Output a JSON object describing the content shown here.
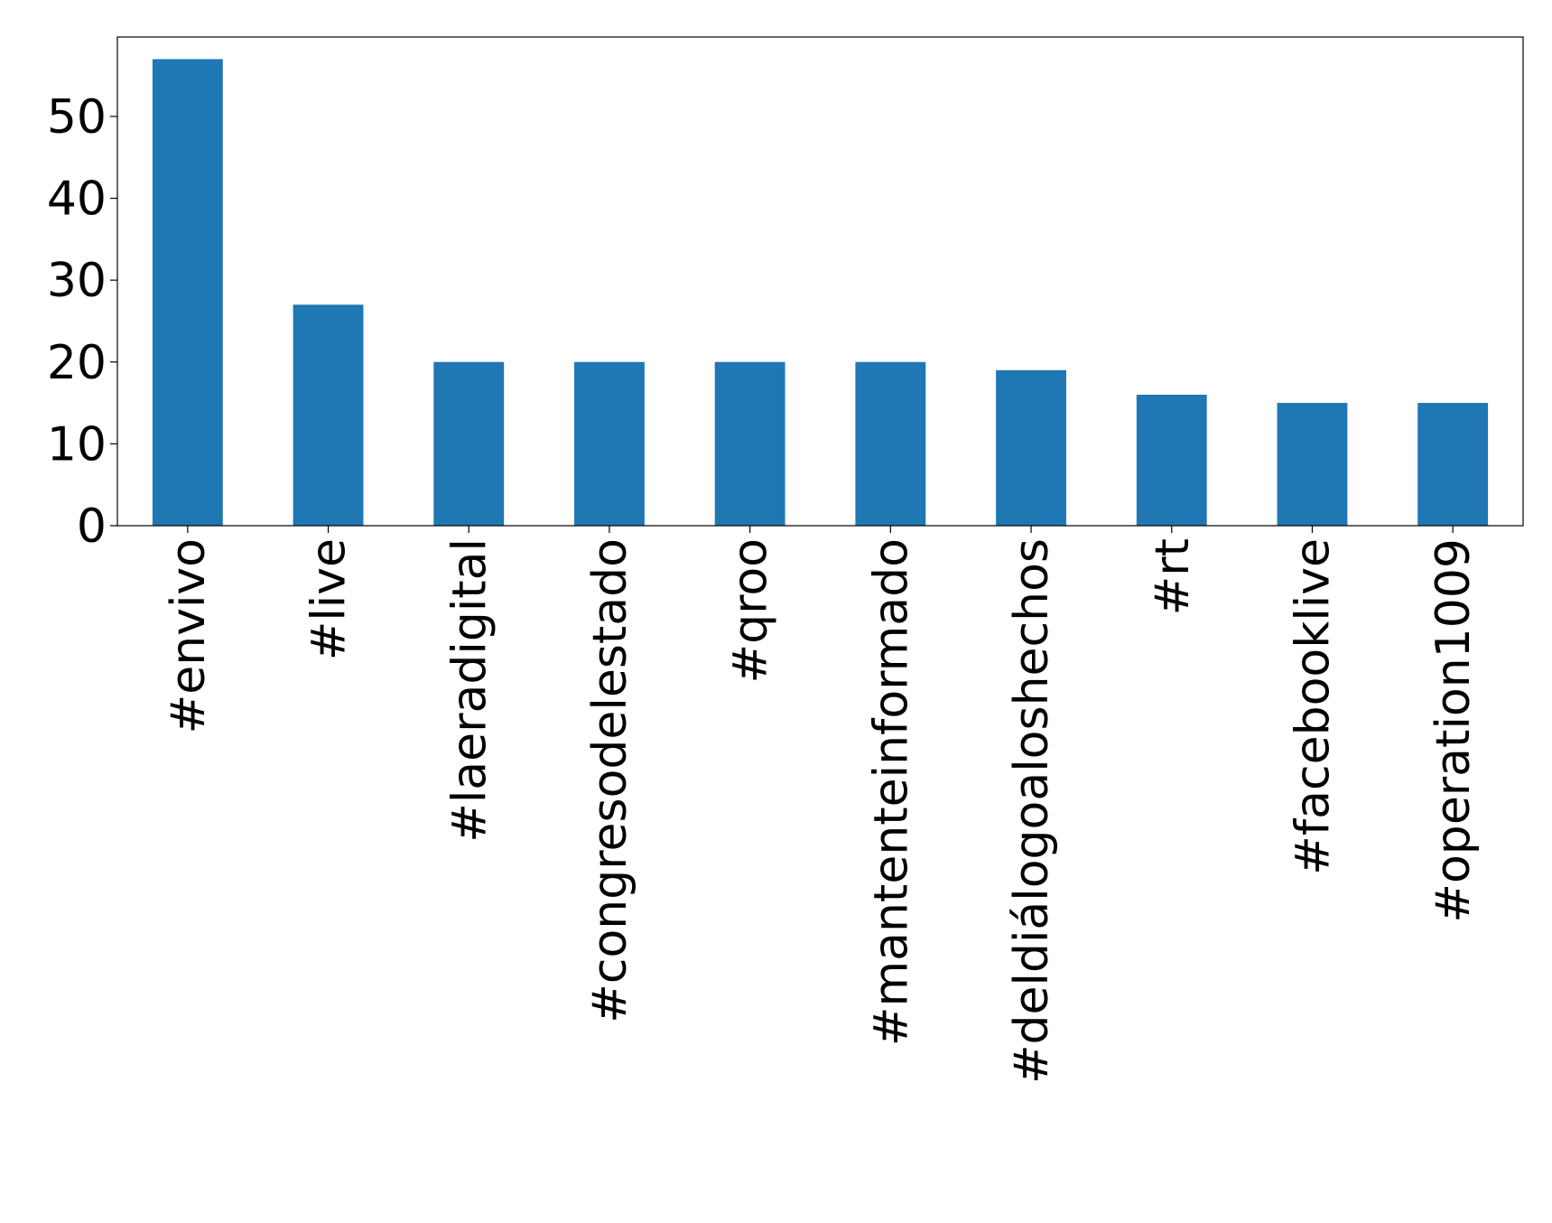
{
  "chart_data": {
    "type": "bar",
    "categories": [
      "#envivo",
      "#live",
      "#laeradigital",
      "#congresodelestado",
      "#qroo",
      "#mantenteinformado",
      "#deldiálogoaloshechos",
      "#rt",
      "#facebooklive",
      "#operation1009"
    ],
    "values": [
      57,
      27,
      20,
      20,
      20,
      20,
      19,
      16,
      15,
      15
    ],
    "color": "#1f77b4",
    "ylim": [
      0,
      59.7
    ],
    "yticks": [
      0,
      10,
      20,
      30,
      40,
      50
    ],
    "grid": false
  }
}
